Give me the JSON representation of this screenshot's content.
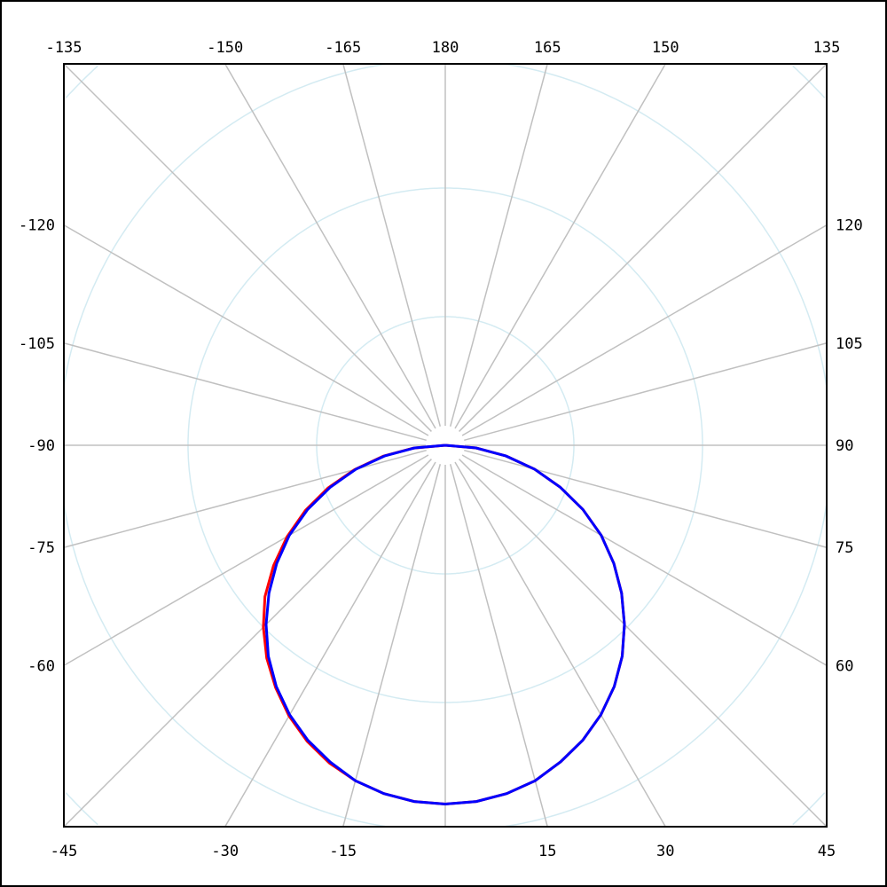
{
  "chart_data": {
    "type": "polar",
    "angle_zero": "bottom",
    "angle_direction": "positive to the right",
    "angle_step": 15,
    "angle_labels": {
      "top": [
        -135,
        -150,
        -165,
        180,
        165,
        150,
        135
      ],
      "left": [
        -120,
        -105,
        -90,
        -75,
        -60
      ],
      "right": [
        120,
        105,
        90,
        75,
        60
      ],
      "bottom": [
        -45,
        -30,
        -15,
        15,
        30,
        45
      ]
    },
    "radial_rings": 4,
    "grid": true,
    "colors": {
      "grid_radial": "#c0c0c0",
      "grid_rings": "#d4ebf2",
      "series_1": "#ff0000",
      "series_2": "#0000ff"
    },
    "angles": [
      -90,
      -85,
      -80,
      -75,
      -70,
      -65,
      -60,
      -55,
      -50,
      -45,
      -40,
      -35,
      -30,
      -25,
      -20,
      -15,
      -10,
      -5,
      0,
      5,
      10,
      15,
      20,
      25,
      30,
      35,
      40,
      45,
      50,
      55,
      60,
      65,
      70,
      75,
      80,
      85,
      90
    ],
    "series": [
      {
        "color": "#ff0000",
        "values": [
          0,
          0.25,
          0.49,
          0.73,
          0.97,
          1.2,
          1.42,
          1.63,
          1.83,
          2.0,
          2.16,
          2.3,
          2.43,
          2.54,
          2.63,
          2.7,
          2.75,
          2.78,
          2.79,
          2.78,
          2.75,
          2.7,
          2.62,
          2.53,
          2.42,
          2.29,
          2.14,
          1.97,
          1.79,
          1.6,
          1.4,
          1.18,
          0.95,
          0.72,
          0.48,
          0.24,
          0
        ]
      },
      {
        "color": "#0000ff",
        "values": [
          0,
          0.24,
          0.48,
          0.72,
          0.95,
          1.18,
          1.4,
          1.6,
          1.79,
          1.97,
          2.14,
          2.29,
          2.42,
          2.53,
          2.62,
          2.7,
          2.75,
          2.78,
          2.79,
          2.78,
          2.75,
          2.7,
          2.62,
          2.53,
          2.42,
          2.29,
          2.14,
          1.97,
          1.79,
          1.6,
          1.4,
          1.18,
          0.95,
          0.72,
          0.48,
          0.24,
          0
        ]
      }
    ]
  }
}
